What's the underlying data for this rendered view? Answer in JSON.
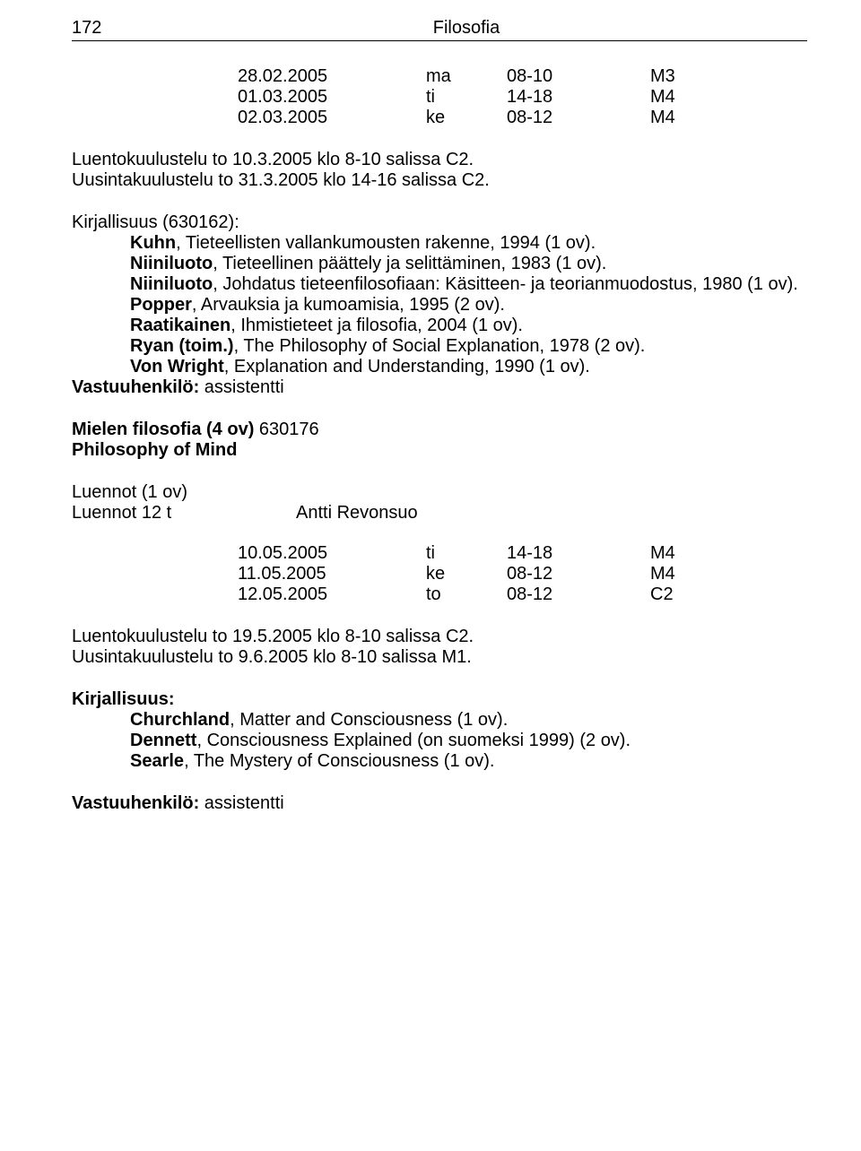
{
  "header": {
    "page_number": "172",
    "title": "Filosofia"
  },
  "schedule1": {
    "rows": [
      {
        "date": "28.02.2005",
        "day": "ma",
        "time": "08-10",
        "room": "M3"
      },
      {
        "date": "01.03.2005",
        "day": "ti",
        "time": "14-18",
        "room": "M4"
      },
      {
        "date": "02.03.2005",
        "day": "ke",
        "time": "08-12",
        "room": "M4"
      }
    ]
  },
  "exam1": {
    "line1": "Luentokuulustelu to 10.3.2005 klo 8-10 salissa C2.",
    "line2": "Uusintakuulustelu to 31.3.2005 klo 14-16 salissa C2."
  },
  "lit1": {
    "heading": "Kirjallisuus (630162):",
    "items": [
      {
        "author": "Kuhn",
        "rest": ", Tieteellisten vallankumousten rakenne, 1994 (1 ov)."
      },
      {
        "author": "Niiniluoto",
        "rest": ", Tieteellinen päättely ja selittäminen, 1983 (1 ov)."
      },
      {
        "author": "Niiniluoto",
        "rest": ", Johdatus tieteenfilosofiaan: Käsitteen- ja teorian­muodostus, 1980 (1 ov)."
      },
      {
        "author": "Popper",
        "rest": ", Arvauksia ja kumoamisia, 1995 (2 ov)."
      },
      {
        "author": "Raatikainen",
        "rest": ", Ihmistieteet ja filosofia, 2004 (1 ov)."
      },
      {
        "author": "Ryan (toim.)",
        "rest": ", The Philosophy of Social Explanation, 1978 (2 ov)."
      },
      {
        "author": "Von Wright",
        "rest": ", Explanation and Understanding, 1990 (1 ov)."
      }
    ],
    "responsible_label": "Vastuuhenkilö:",
    "responsible_value": " assistentti"
  },
  "course2": {
    "title_bold": "Mielen filosofia (4 ov) ",
    "title_code": "630176",
    "subtitle": "Philosophy of Mind"
  },
  "lectures2": {
    "line1": "Luennot (1 ov)",
    "left": "Luennot 12 t",
    "right": "Antti Revonsuo"
  },
  "schedule2": {
    "rows": [
      {
        "date": "10.05.2005",
        "day": "ti",
        "time": "14-18",
        "room": "M4"
      },
      {
        "date": "11.05.2005",
        "day": "ke",
        "time": "08-12",
        "room": "M4"
      },
      {
        "date": "12.05.2005",
        "day": "to",
        "time": "08-12",
        "room": "C2"
      }
    ]
  },
  "exam2": {
    "line1": "Luentokuulustelu to 19.5.2005 klo 8-10 salissa C2.",
    "line2": "Uusintakuulustelu to 9.6.2005 klo 8-10 salissa M1."
  },
  "lit2": {
    "heading": "Kirjallisuus:",
    "items": [
      {
        "author": "Churchland",
        "rest": ", Matter and Consciousness (1 ov)."
      },
      {
        "author": "Dennett",
        "rest": ", Consciousness Explained (on suomeksi 1999) (2 ov)."
      },
      {
        "author": "Searle",
        "rest": ", The Mystery of Consciousness (1 ov)."
      }
    ]
  },
  "responsible2": {
    "label": "Vastuuhenkilö:",
    "value": " assistentti"
  }
}
